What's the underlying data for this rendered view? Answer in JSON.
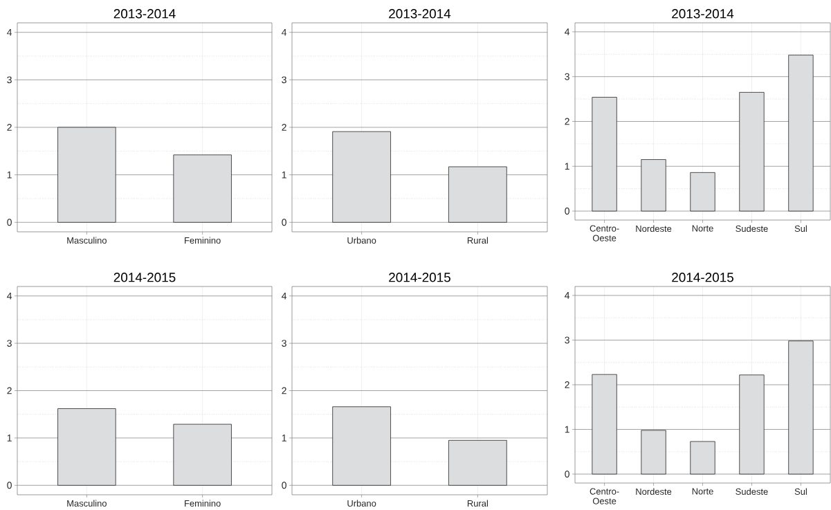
{
  "chart_data": [
    {
      "type": "bar",
      "title": "2013-2014",
      "categories": [
        "Masculino",
        "Feminino"
      ],
      "values": [
        2.0,
        1.42
      ],
      "color": "#dcdddf",
      "ylim": [
        -0.2,
        4.2
      ],
      "yticks": [
        0,
        1,
        2,
        3,
        4
      ],
      "grid": true
    },
    {
      "type": "bar",
      "title": "2013-2014",
      "categories": [
        "Urbano",
        "Rural"
      ],
      "values": [
        1.91,
        1.17
      ],
      "color": "#dcdddf",
      "ylim": [
        -0.2,
        4.2
      ],
      "yticks": [
        0,
        1,
        2,
        3,
        4
      ],
      "grid": true
    },
    {
      "type": "bar",
      "title": "2013-2014",
      "categories": [
        "Centro-Oeste",
        "Nordeste",
        "Norte",
        "Sudeste",
        "Sul"
      ],
      "values": [
        2.54,
        1.15,
        0.86,
        2.65,
        3.48
      ],
      "color": "#dcdddf",
      "ylim": [
        -0.2,
        4.2
      ],
      "yticks": [
        0,
        1,
        2,
        3,
        4
      ],
      "grid": true
    },
    {
      "type": "bar",
      "title": "2014-2015",
      "categories": [
        "Masculino",
        "Feminino"
      ],
      "values": [
        1.62,
        1.29
      ],
      "color": "#dcdddf",
      "ylim": [
        -0.2,
        4.2
      ],
      "yticks": [
        0,
        1,
        2,
        3,
        4
      ],
      "grid": true
    },
    {
      "type": "bar",
      "title": "2014-2015",
      "categories": [
        "Urbano",
        "Rural"
      ],
      "values": [
        1.66,
        0.95
      ],
      "color": "#dcdddf",
      "ylim": [
        -0.2,
        4.2
      ],
      "yticks": [
        0,
        1,
        2,
        3,
        4
      ],
      "grid": true
    },
    {
      "type": "bar",
      "title": "2014-2015",
      "categories": [
        "Centro-Oeste",
        "Nordeste",
        "Norte",
        "Sudeste",
        "Sul"
      ],
      "values": [
        2.23,
        0.98,
        0.73,
        2.22,
        2.98
      ],
      "color": "#dcdddf",
      "ylim": [
        -0.2,
        4.2
      ],
      "yticks": [
        0,
        1,
        2,
        3,
        4
      ],
      "grid": true
    }
  ]
}
